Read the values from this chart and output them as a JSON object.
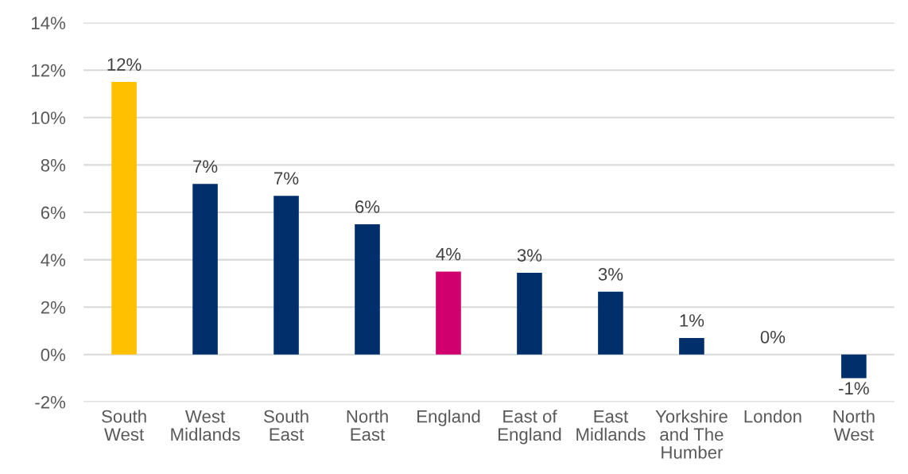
{
  "chart_data": {
    "type": "bar",
    "categories": [
      "South\nWest",
      "West\nMidlands",
      "South\nEast",
      "North\nEast",
      "England",
      "East of\nEngland",
      "East\nMidlands",
      "Yorkshire\nand The\nHumber",
      "London",
      "North\nWest"
    ],
    "values": [
      11.5,
      7.2,
      6.7,
      5.5,
      3.5,
      3.45,
      2.65,
      0.7,
      0,
      -1.0
    ],
    "colors": [
      "#ffc000",
      "#002f6c",
      "#002f6c",
      "#002f6c",
      "#d0006f",
      "#002f6c",
      "#002f6c",
      "#002f6c",
      "#002f6c",
      "#002f6c"
    ],
    "value_labels": [
      "12%",
      "7%",
      "7%",
      "6%",
      "4%",
      "3%",
      "3%",
      "1%",
      "0%",
      "-1%"
    ],
    "ylim": [
      -2,
      14
    ],
    "yticks": [
      {
        "value": -2,
        "label": "-2%"
      },
      {
        "value": 0,
        "label": "0%"
      },
      {
        "value": 2,
        "label": "2%"
      },
      {
        "value": 4,
        "label": "4%"
      },
      {
        "value": 6,
        "label": "6%"
      },
      {
        "value": 8,
        "label": "8%"
      },
      {
        "value": 10,
        "label": "10%"
      },
      {
        "value": 12,
        "label": "12%"
      },
      {
        "value": 14,
        "label": "14%"
      }
    ],
    "grid": "y"
  }
}
